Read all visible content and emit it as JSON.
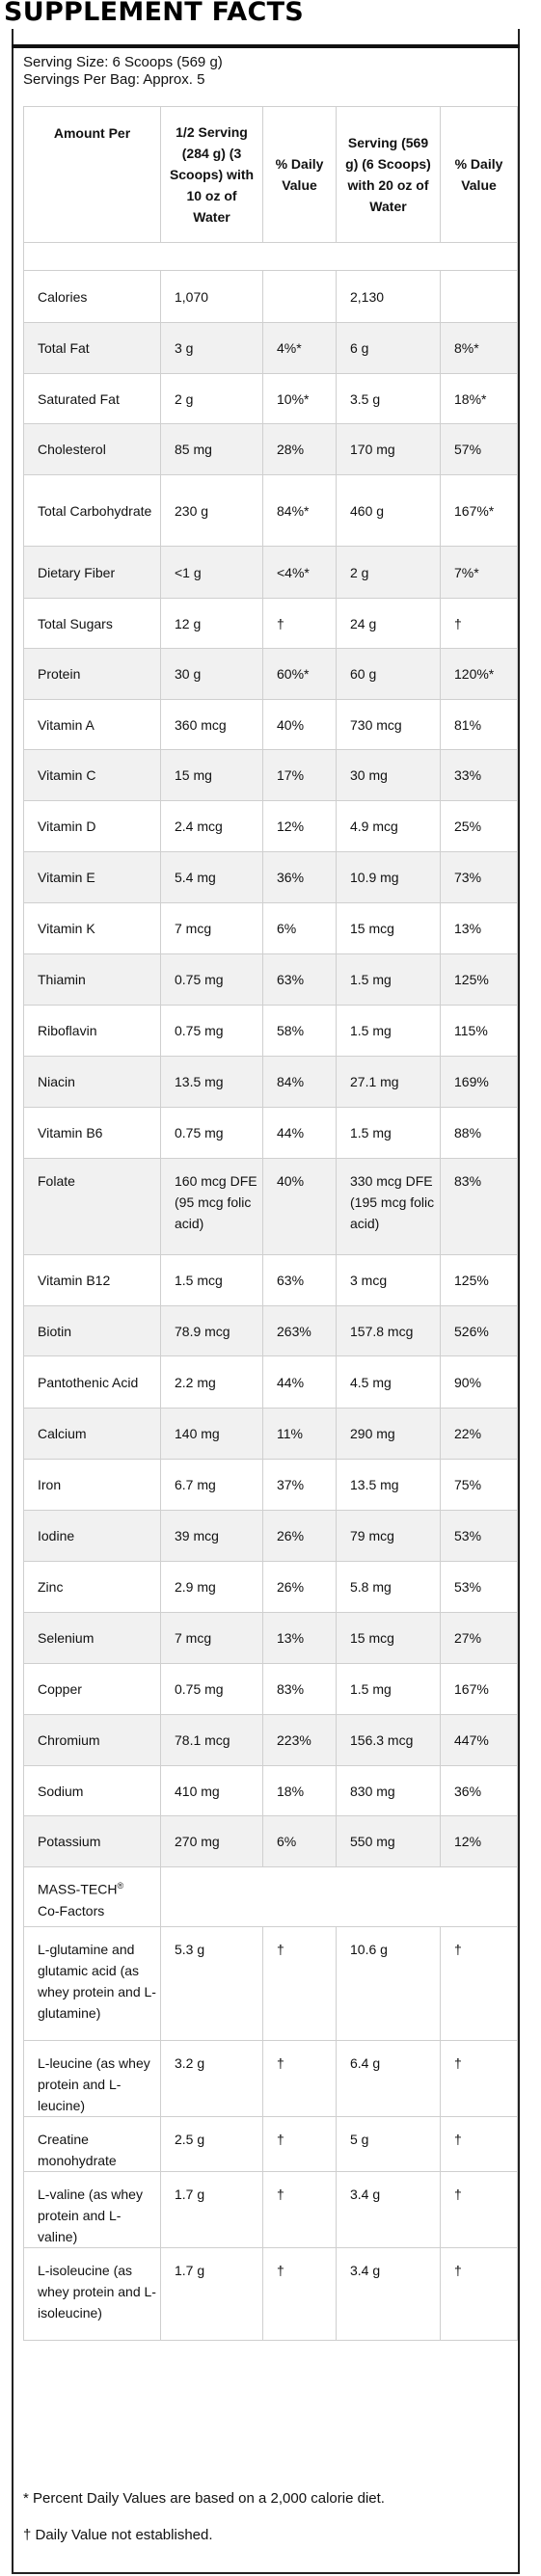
{
  "title": "SUPPLEMENT FACTS",
  "serving_size": "Serving Size: 6 Scoops (569 g)",
  "servings_per_bag": "Servings Per Bag: Approx. 5",
  "headers": {
    "amount": "Amount Per",
    "half_serving": "1/2 Serving (284 g) (3 Scoops) with 10 oz of Water",
    "dv1": "% Daily Value",
    "serving": "Serving (569 g) (6 Scoops) with 20 oz of Water",
    "dv2": "% Daily Value"
  },
  "rows": [
    {
      "name": "Calories",
      "half": "1,070",
      "dv1": "",
      "full": "2,130",
      "dv2": ""
    },
    {
      "name": "Total Fat",
      "half": "3 g",
      "dv1": "4%*",
      "full": "6 g",
      "dv2": "8%*"
    },
    {
      "name": "Saturated Fat",
      "half": "2 g",
      "dv1": "10%*",
      "full": "3.5 g",
      "dv2": "18%*"
    },
    {
      "name": "Cholesterol",
      "half": "85 mg",
      "dv1": "28%",
      "full": "170 mg",
      "dv2": "57%"
    },
    {
      "name": "Total Carbohydrate",
      "half": "230 g",
      "dv1": "84%*",
      "full": "460 g",
      "dv2": "167%*"
    },
    {
      "name": "Dietary Fiber",
      "half": "<1 g",
      "dv1": "<4%*",
      "full": "2 g",
      "dv2": "7%*"
    },
    {
      "name": "Total Sugars",
      "half": "12 g",
      "dv1": "†",
      "full": "24 g",
      "dv2": "†"
    },
    {
      "name": "Protein",
      "half": "30 g",
      "dv1": "60%*",
      "full": "60 g",
      "dv2": "120%*"
    },
    {
      "name": "Vitamin A",
      "half": "360 mcg",
      "dv1": "40%",
      "full": "730 mcg",
      "dv2": "81%"
    },
    {
      "name": "Vitamin C",
      "half": "15 mg",
      "dv1": "17%",
      "full": "30 mg",
      "dv2": "33%"
    },
    {
      "name": "Vitamin D",
      "half": "2.4 mcg",
      "dv1": "12%",
      "full": "4.9 mcg",
      "dv2": "25%"
    },
    {
      "name": "Vitamin E",
      "half": "5.4 mg",
      "dv1": "36%",
      "full": "10.9 mg",
      "dv2": "73%"
    },
    {
      "name": "Vitamin K",
      "half": "7 mcg",
      "dv1": "6%",
      "full": "15 mcg",
      "dv2": "13%"
    },
    {
      "name": "Thiamin",
      "half": "0.75 mg",
      "dv1": "63%",
      "full": "1.5 mg",
      "dv2": "125%"
    },
    {
      "name": "Riboflavin",
      "half": "0.75 mg",
      "dv1": "58%",
      "full": "1.5 mg",
      "dv2": "115%"
    },
    {
      "name": "Niacin",
      "half": "13.5 mg",
      "dv1": "84%",
      "full": "27.1 mg",
      "dv2": "169%"
    },
    {
      "name": "Vitamin B6",
      "half": "0.75 mg",
      "dv1": "44%",
      "full": "1.5 mg",
      "dv2": "88%"
    },
    {
      "name": "Folate",
      "half": "160 mcg DFE (95 mcg folic acid)",
      "dv1": "40%",
      "full": "330 mcg DFE (195 mcg folic acid)",
      "dv2": "83%"
    },
    {
      "name": "Vitamin B12",
      "half": "1.5 mcg",
      "dv1": "63%",
      "full": "3 mcg",
      "dv2": "125%"
    },
    {
      "name": "Biotin",
      "half": "78.9 mcg",
      "dv1": "263%",
      "full": "157.8 mcg",
      "dv2": "526%"
    },
    {
      "name": "Pantothenic Acid",
      "half": "2.2 mg",
      "dv1": "44%",
      "full": "4.5 mg",
      "dv2": "90%"
    },
    {
      "name": "Calcium",
      "half": "140 mg",
      "dv1": "11%",
      "full": "290 mg",
      "dv2": "22%"
    },
    {
      "name": "Iron",
      "half": "6.7 mg",
      "dv1": "37%",
      "full": "13.5 mg",
      "dv2": "75%"
    },
    {
      "name": "Iodine",
      "half": "39 mcg",
      "dv1": "26%",
      "full": "79 mcg",
      "dv2": "53%"
    },
    {
      "name": "Zinc",
      "half": "2.9 mg",
      "dv1": "26%",
      "full": "5.8 mg",
      "dv2": "53%"
    },
    {
      "name": "Selenium",
      "half": "7 mcg",
      "dv1": "13%",
      "full": "15 mcg",
      "dv2": "27%"
    },
    {
      "name": "Copper",
      "half": "0.75 mg",
      "dv1": "83%",
      "full": "1.5 mg",
      "dv2": "167%"
    },
    {
      "name": "Chromium",
      "half": "78.1 mcg",
      "dv1": "223%",
      "full": "156.3 mcg",
      "dv2": "447%"
    },
    {
      "name": "Sodium",
      "half": "410 mg",
      "dv1": "18%",
      "full": "830 mg",
      "dv2": "36%"
    },
    {
      "name": "Potassium",
      "half": "270 mg",
      "dv1": "6%",
      "full": "550 mg",
      "dv2": "12%"
    }
  ],
  "cofactors_label": "MASS-TECH",
  "cofactors_sup": "®",
  "cofactors_label2": "Co-Factors",
  "cofactors": [
    {
      "name": "L-glutamine and glutamic acid (as whey protein and L-glutamine)",
      "half": "5.3 g",
      "dv1": "†",
      "full": "10.6 g",
      "dv2": "†"
    },
    {
      "name": "L-leucine (as whey protein and L-leucine)",
      "half": "3.2 g",
      "dv1": "†",
      "full": "6.4 g",
      "dv2": "†"
    },
    {
      "name": "Creatine monohydrate",
      "half": "2.5 g",
      "dv1": "†",
      "full": "5 g",
      "dv2": "†"
    },
    {
      "name": "L-valine (as whey protein and L-valine)",
      "half": "1.7 g",
      "dv1": "†",
      "full": "3.4 g",
      "dv2": "†"
    },
    {
      "name": "L-isoleucine (as whey protein and L-isoleucine)",
      "half": "1.7 g",
      "dv1": "†",
      "full": "3.4 g",
      "dv2": "†"
    }
  ],
  "footnote1": "* Percent Daily Values are based on a 2,000 calorie diet.",
  "footnote2": "† Daily Value not established."
}
